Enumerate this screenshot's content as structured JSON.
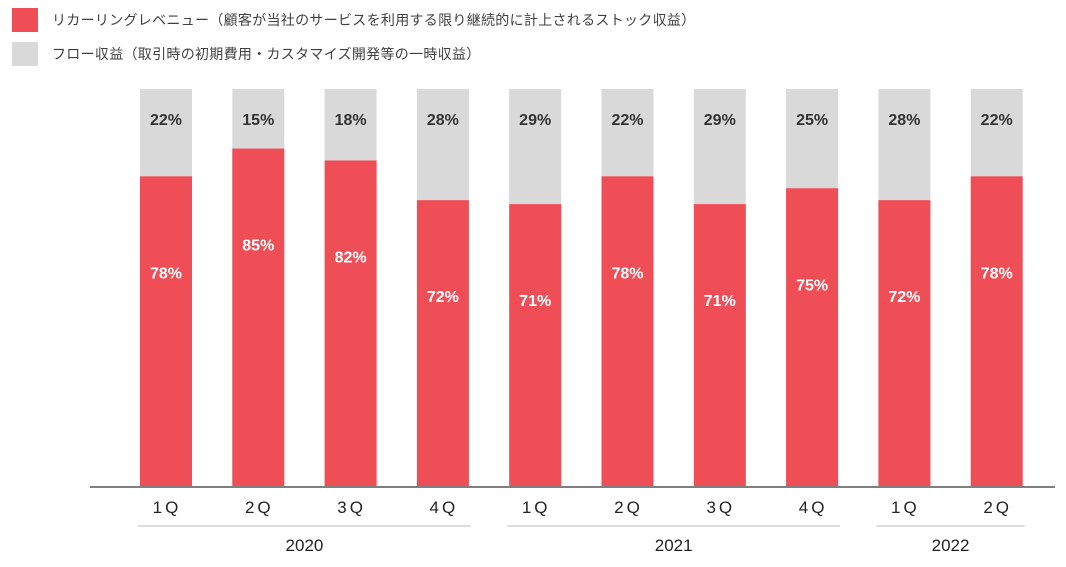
{
  "legend": [
    {
      "label": "リカーリングレベニュー（顧客が当社のサービスを利用する限り継続的に計上されるストック収益）",
      "color": "#f04e57"
    },
    {
      "label": "フロー収益（取引時の初期費用・カスタマイズ開発等の一時収益）",
      "color": "#d9d9d9"
    }
  ],
  "chart_data": {
    "type": "bar",
    "stacked": true,
    "percent": true,
    "categories": [
      "1Q",
      "2Q",
      "3Q",
      "4Q",
      "1Q",
      "2Q",
      "3Q",
      "4Q",
      "1Q",
      "2Q"
    ],
    "groups": [
      {
        "label": "2020",
        "start": 0,
        "end": 3
      },
      {
        "label": "2021",
        "start": 4,
        "end": 7
      },
      {
        "label": "2022",
        "start": 8,
        "end": 9
      }
    ],
    "series": [
      {
        "name": "リカーリングレベニュー（顧客が当社のサービスを利用する限り継続的に計上されるストック収益）",
        "color": "#f04e57",
        "label_color": "#ffffff",
        "values": [
          78,
          85,
          82,
          72,
          71,
          78,
          71,
          75,
          72,
          78
        ]
      },
      {
        "name": "フロー収益（取引時の初期費用・カスタマイズ開発等の一時収益）",
        "color": "#d9d9d9",
        "label_color": "#333333",
        "values": [
          22,
          15,
          18,
          28,
          29,
          22,
          29,
          25,
          28,
          22
        ]
      }
    ],
    "value_suffix": "%",
    "ylim": [
      0,
      100
    ],
    "grid": false
  }
}
